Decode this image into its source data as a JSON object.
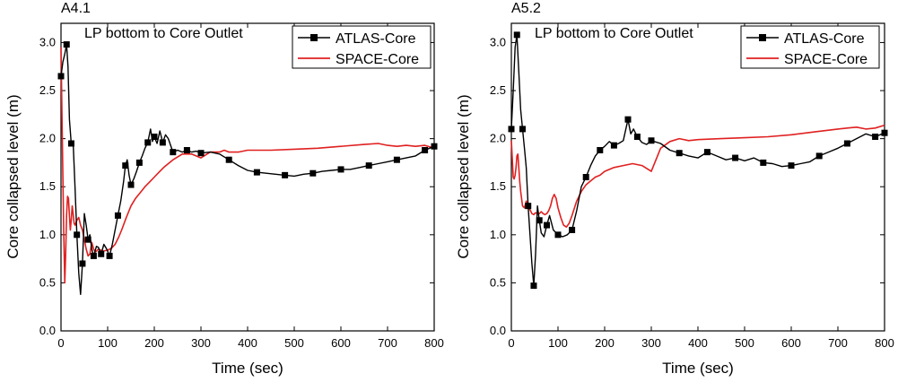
{
  "chart_data": [
    {
      "type": "line",
      "panel_label": "A4.1",
      "annotation": "LP bottom to Core Outlet",
      "xlabel": "Time (sec)",
      "ylabel": "Core collapsed level (m)",
      "xlim": [
        0,
        800
      ],
      "ylim": [
        0,
        3.2
      ],
      "xticks": [
        0,
        100,
        200,
        300,
        400,
        500,
        600,
        700,
        800
      ],
      "yticks": [
        0.0,
        0.5,
        1.0,
        1.5,
        2.0,
        2.5,
        3.0
      ],
      "xtick_labels": [
        "0",
        "100",
        "200",
        "300",
        "400",
        "500",
        "600",
        "700",
        "800"
      ],
      "ytick_labels": [
        "0.0",
        "0.5",
        "1.0",
        "1.5",
        "2.0",
        "2.5",
        "3.0"
      ],
      "legend_position": "top-right",
      "series": [
        {
          "name": "ATLAS-Core",
          "color": "#000000",
          "marker": "square",
          "x": [
            0,
            4,
            8,
            12,
            15,
            18,
            22,
            26,
            30,
            34,
            38,
            42,
            46,
            50,
            54,
            58,
            62,
            66,
            70,
            76,
            80,
            86,
            92,
            98,
            104,
            110,
            116,
            122,
            128,
            134,
            138,
            142,
            146,
            150,
            156,
            162,
            168,
            174,
            180,
            186,
            192,
            196,
            200,
            206,
            212,
            218,
            224,
            230,
            240,
            250,
            260,
            270,
            280,
            290,
            300,
            320,
            340,
            360,
            380,
            400,
            420,
            440,
            460,
            480,
            500,
            520,
            540,
            560,
            580,
            600,
            620,
            640,
            660,
            680,
            700,
            720,
            740,
            760,
            780,
            800
          ],
          "values": [
            2.65,
            2.8,
            2.88,
            2.98,
            2.75,
            2.2,
            1.95,
            1.97,
            1.5,
            1.0,
            0.6,
            0.38,
            0.7,
            1.22,
            1.1,
            0.95,
            1.0,
            0.85,
            0.78,
            0.88,
            0.87,
            0.8,
            0.9,
            0.85,
            0.78,
            0.9,
            1.05,
            1.2,
            1.35,
            1.55,
            1.72,
            1.78,
            1.62,
            1.52,
            1.58,
            1.66,
            1.75,
            1.82,
            1.9,
            1.96,
            2.1,
            1.97,
            2.02,
            1.95,
            2.08,
            1.96,
            2.04,
            2.0,
            1.86,
            1.88,
            1.86,
            1.88,
            1.86,
            1.87,
            1.85,
            1.86,
            1.84,
            1.78,
            1.72,
            1.67,
            1.65,
            1.64,
            1.63,
            1.62,
            1.61,
            1.63,
            1.64,
            1.66,
            1.67,
            1.68,
            1.68,
            1.7,
            1.72,
            1.74,
            1.76,
            1.78,
            1.8,
            1.82,
            1.88,
            1.92
          ]
        },
        {
          "name": "SPACE-Core",
          "color": "#e02020",
          "marker": "none",
          "x": [
            0,
            2,
            4,
            6,
            8,
            10,
            12,
            14,
            16,
            18,
            20,
            22,
            24,
            26,
            28,
            30,
            34,
            38,
            42,
            46,
            50,
            54,
            58,
            62,
            66,
            70,
            74,
            80,
            90,
            100,
            108,
            116,
            124,
            130,
            140,
            150,
            160,
            170,
            180,
            190,
            200,
            210,
            220,
            240,
            260,
            280,
            300,
            320,
            340,
            350,
            360,
            380,
            400,
            450,
            500,
            550,
            600,
            650,
            680,
            700,
            720,
            740,
            760,
            780,
            800
          ],
          "values": [
            2.95,
            2.3,
            1.6,
            1.0,
            0.5,
            0.8,
            1.2,
            1.4,
            1.38,
            1.2,
            1.05,
            1.15,
            1.3,
            1.22,
            1.12,
            1.1,
            1.15,
            1.18,
            1.1,
            1.05,
            0.95,
            0.85,
            0.78,
            0.8,
            0.92,
            0.85,
            0.82,
            0.85,
            0.83,
            0.84,
            0.86,
            0.9,
            0.98,
            1.05,
            1.18,
            1.3,
            1.38,
            1.44,
            1.5,
            1.55,
            1.6,
            1.65,
            1.7,
            1.78,
            1.84,
            1.84,
            1.8,
            1.86,
            1.86,
            1.88,
            1.86,
            1.86,
            1.88,
            1.88,
            1.89,
            1.9,
            1.92,
            1.94,
            1.95,
            1.93,
            1.92,
            1.93,
            1.92,
            1.93,
            1.9
          ]
        }
      ]
    },
    {
      "type": "line",
      "panel_label": "A5.2",
      "annotation": "LP bottom to Core Outlet",
      "xlabel": "Time (sec)",
      "ylabel": "Core collapsed level (m)",
      "xlim": [
        0,
        800
      ],
      "ylim": [
        0,
        3.2
      ],
      "xticks": [
        0,
        100,
        200,
        300,
        400,
        500,
        600,
        700,
        800
      ],
      "yticks": [
        0.0,
        0.5,
        1.0,
        1.5,
        2.0,
        2.5,
        3.0
      ],
      "xtick_labels": [
        "0",
        "100",
        "200",
        "300",
        "400",
        "500",
        "600",
        "700",
        "800"
      ],
      "ytick_labels": [
        "0.0",
        "0.5",
        "1.0",
        "1.5",
        "2.0",
        "2.5",
        "3.0"
      ],
      "legend_position": "top-right",
      "series": [
        {
          "name": "ATLAS-Core",
          "color": "#000000",
          "marker": "square",
          "x": [
            0,
            4,
            8,
            12,
            16,
            20,
            24,
            28,
            32,
            36,
            40,
            44,
            48,
            52,
            56,
            60,
            64,
            70,
            76,
            82,
            90,
            100,
            110,
            120,
            130,
            140,
            150,
            160,
            170,
            180,
            190,
            200,
            210,
            220,
            230,
            240,
            250,
            256,
            262,
            270,
            280,
            290,
            300,
            320,
            340,
            360,
            380,
            400,
            420,
            440,
            460,
            480,
            500,
            520,
            540,
            560,
            580,
            600,
            620,
            640,
            660,
            680,
            700,
            720,
            740,
            760,
            780,
            800
          ],
          "values": [
            2.1,
            2.5,
            2.95,
            3.08,
            2.7,
            2.3,
            2.1,
            1.9,
            1.7,
            1.3,
            1.0,
            0.7,
            0.47,
            0.8,
            1.3,
            1.15,
            1.02,
            0.98,
            1.1,
            1.2,
            1.05,
            1.0,
            0.98,
            1.0,
            1.05,
            1.25,
            1.5,
            1.6,
            1.72,
            1.82,
            1.88,
            1.92,
            1.97,
            1.93,
            1.95,
            1.98,
            2.2,
            2.05,
            2.1,
            2.02,
            1.96,
            1.94,
            1.98,
            1.95,
            1.88,
            1.85,
            1.82,
            1.8,
            1.86,
            1.82,
            1.78,
            1.8,
            1.77,
            1.8,
            1.75,
            1.74,
            1.71,
            1.72,
            1.74,
            1.76,
            1.82,
            1.86,
            1.9,
            1.95,
            2.0,
            2.05,
            2.02,
            2.06
          ]
        },
        {
          "name": "SPACE-Core",
          "color": "#e02020",
          "marker": "none",
          "x": [
            0,
            2,
            4,
            6,
            8,
            10,
            12,
            14,
            16,
            18,
            20,
            24,
            28,
            32,
            36,
            40,
            44,
            48,
            52,
            56,
            60,
            64,
            68,
            72,
            76,
            80,
            84,
            88,
            92,
            96,
            100,
            106,
            112,
            118,
            124,
            130,
            140,
            150,
            160,
            170,
            180,
            190,
            200,
            220,
            240,
            260,
            280,
            300,
            310,
            320,
            340,
            360,
            380,
            400,
            450,
            500,
            550,
            600,
            650,
            700,
            720,
            740,
            760,
            780,
            800
          ],
          "values": [
            1.98,
            1.8,
            1.6,
            1.58,
            1.62,
            1.7,
            1.82,
            1.84,
            1.7,
            1.55,
            1.45,
            1.3,
            1.28,
            1.35,
            1.3,
            1.26,
            1.22,
            1.21,
            1.23,
            1.22,
            1.22,
            1.24,
            1.22,
            1.21,
            1.22,
            1.25,
            1.3,
            1.38,
            1.42,
            1.38,
            1.28,
            1.18,
            1.1,
            1.08,
            1.12,
            1.2,
            1.35,
            1.45,
            1.52,
            1.56,
            1.6,
            1.62,
            1.66,
            1.7,
            1.72,
            1.74,
            1.72,
            1.66,
            1.78,
            1.9,
            1.97,
            2.0,
            1.98,
            1.99,
            2.0,
            2.01,
            2.02,
            2.04,
            2.07,
            2.1,
            2.11,
            2.12,
            2.1,
            2.11,
            2.14
          ]
        }
      ]
    }
  ]
}
